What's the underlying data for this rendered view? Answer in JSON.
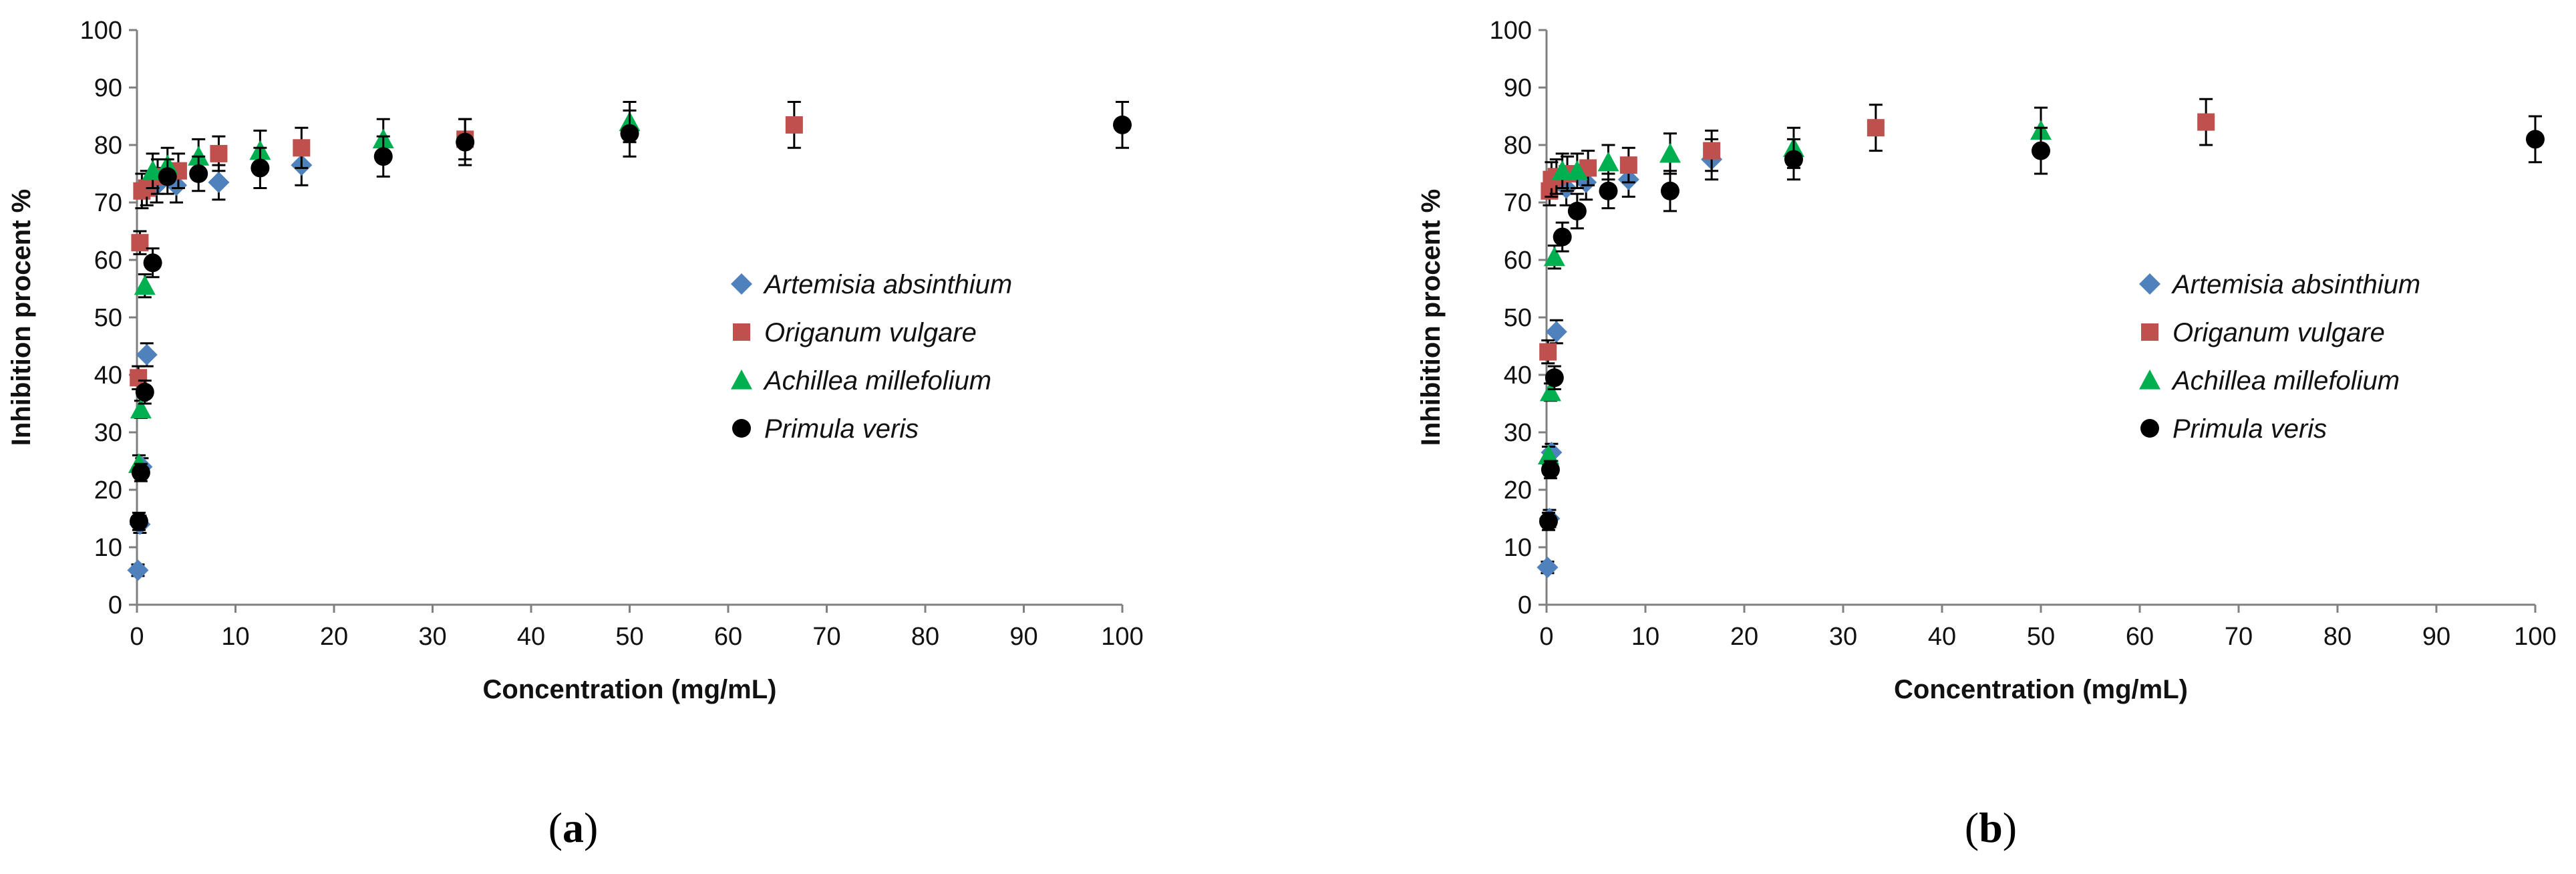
{
  "chart_data": [
    {
      "type": "scatter",
      "panel_label": "(a)",
      "panel_letter": "a",
      "xlabel": "Concentration (mg/mL)",
      "ylabel": "Inhibition procent %",
      "xlim": [
        0,
        100
      ],
      "ylim": [
        0,
        100
      ],
      "xticks": [
        0,
        10,
        20,
        30,
        40,
        50,
        60,
        70,
        80,
        90,
        100
      ],
      "yticks": [
        0,
        10,
        20,
        30,
        40,
        50,
        60,
        70,
        80,
        90,
        100
      ],
      "legend_position": "center-right",
      "series": [
        {
          "name": "Artemisia absinthium",
          "color": "#4f81bd",
          "marker": "diamond",
          "points": [
            {
              "x": 0.1,
              "y": 6,
              "err": 1
            },
            {
              "x": 0.3,
              "y": 14,
              "err": 1.5
            },
            {
              "x": 0.5,
              "y": 24,
              "err": 1.5
            },
            {
              "x": 1.0,
              "y": 43.5,
              "err": 2
            },
            {
              "x": 2.0,
              "y": 73,
              "err": 3
            },
            {
              "x": 4.0,
              "y": 73,
              "err": 3
            },
            {
              "x": 8.3,
              "y": 73.5,
              "err": 3
            },
            {
              "x": 16.7,
              "y": 76.5,
              "err": 3.5
            }
          ]
        },
        {
          "name": "Origanum vulgare",
          "color": "#c0504d",
          "marker": "square",
          "points": [
            {
              "x": 0.15,
              "y": 39.5,
              "err": 2
            },
            {
              "x": 0.3,
              "y": 63,
              "err": 2
            },
            {
              "x": 0.5,
              "y": 72,
              "err": 3
            },
            {
              "x": 1.0,
              "y": 72.5,
              "err": 3
            },
            {
              "x": 2.1,
              "y": 74.5,
              "err": 3
            },
            {
              "x": 4.2,
              "y": 75.5,
              "err": 3
            },
            {
              "x": 8.3,
              "y": 78.5,
              "err": 3
            },
            {
              "x": 16.7,
              "y": 79.5,
              "err": 3.5
            },
            {
              "x": 33.3,
              "y": 81,
              "err": 3.5
            },
            {
              "x": 66.7,
              "y": 83.5,
              "err": 4
            }
          ]
        },
        {
          "name": "Achillea millefolium",
          "color": "#00b050",
          "marker": "triangle",
          "points": [
            {
              "x": 0.2,
              "y": 24.5,
              "err": 1.5
            },
            {
              "x": 0.4,
              "y": 34,
              "err": 1.5
            },
            {
              "x": 0.8,
              "y": 55.5,
              "err": 2
            },
            {
              "x": 1.6,
              "y": 75.5,
              "err": 3
            },
            {
              "x": 3.1,
              "y": 76.5,
              "err": 3
            },
            {
              "x": 6.25,
              "y": 78,
              "err": 3
            },
            {
              "x": 12.5,
              "y": 79,
              "err": 3.5
            },
            {
              "x": 25,
              "y": 81,
              "err": 3.5
            },
            {
              "x": 50,
              "y": 84,
              "err": 3.5
            }
          ]
        },
        {
          "name": "Primula veris",
          "color": "#000000",
          "marker": "circle",
          "points": [
            {
              "x": 0.2,
              "y": 14.5,
              "err": 1.5
            },
            {
              "x": 0.4,
              "y": 23,
              "err": 1.5
            },
            {
              "x": 0.8,
              "y": 37,
              "err": 2
            },
            {
              "x": 1.6,
              "y": 59.5,
              "err": 2.5
            },
            {
              "x": 3.1,
              "y": 74.5,
              "err": 3
            },
            {
              "x": 6.25,
              "y": 75,
              "err": 3
            },
            {
              "x": 12.5,
              "y": 76,
              "err": 3.5
            },
            {
              "x": 25,
              "y": 78,
              "err": 3.5
            },
            {
              "x": 33.3,
              "y": 80.5,
              "err": 4
            },
            {
              "x": 50,
              "y": 82,
              "err": 4
            },
            {
              "x": 100,
              "y": 83.5,
              "err": 4
            }
          ]
        }
      ]
    },
    {
      "type": "scatter",
      "panel_label": "(b)",
      "panel_letter": "b",
      "xlabel": "Concentration (mg/mL)",
      "ylabel": "Inhibition procent %",
      "xlim": [
        0,
        100
      ],
      "ylim": [
        0,
        100
      ],
      "xticks": [
        0,
        10,
        20,
        30,
        40,
        50,
        60,
        70,
        80,
        90,
        100
      ],
      "yticks": [
        0,
        10,
        20,
        30,
        40,
        50,
        60,
        70,
        80,
        90,
        100
      ],
      "legend_position": "center-right",
      "series": [
        {
          "name": "Artemisia absinthium",
          "color": "#4f81bd",
          "marker": "diamond",
          "points": [
            {
              "x": 0.1,
              "y": 6.5,
              "err": 1
            },
            {
              "x": 0.3,
              "y": 15,
              "err": 1.5
            },
            {
              "x": 0.5,
              "y": 26.5,
              "err": 1.5
            },
            {
              "x": 1.0,
              "y": 47.5,
              "err": 2
            },
            {
              "x": 2.0,
              "y": 72.5,
              "err": 3
            },
            {
              "x": 4.0,
              "y": 73.5,
              "err": 3
            },
            {
              "x": 8.3,
              "y": 74,
              "err": 3
            },
            {
              "x": 16.7,
              "y": 77.5,
              "err": 3.5
            }
          ]
        },
        {
          "name": "Origanum vulgare",
          "color": "#c0504d",
          "marker": "square",
          "points": [
            {
              "x": 0.15,
              "y": 44,
              "err": 2
            },
            {
              "x": 0.3,
              "y": 72,
              "err": 2.5
            },
            {
              "x": 0.5,
              "y": 74,
              "err": 3
            },
            {
              "x": 1.0,
              "y": 74.5,
              "err": 3
            },
            {
              "x": 2.1,
              "y": 75,
              "err": 3
            },
            {
              "x": 4.2,
              "y": 76,
              "err": 3
            },
            {
              "x": 8.3,
              "y": 76.5,
              "err": 3
            },
            {
              "x": 16.7,
              "y": 79,
              "err": 3.5
            },
            {
              "x": 33.3,
              "y": 83,
              "err": 4
            },
            {
              "x": 66.7,
              "y": 84,
              "err": 4
            }
          ]
        },
        {
          "name": "Achillea millefolium",
          "color": "#00b050",
          "marker": "triangle",
          "points": [
            {
              "x": 0.2,
              "y": 26,
              "err": 1.5
            },
            {
              "x": 0.4,
              "y": 37,
              "err": 1.5
            },
            {
              "x": 0.8,
              "y": 60.5,
              "err": 2
            },
            {
              "x": 1.6,
              "y": 75.5,
              "err": 3
            },
            {
              "x": 3.1,
              "y": 75.5,
              "err": 3
            },
            {
              "x": 6.25,
              "y": 77,
              "err": 3
            },
            {
              "x": 12.5,
              "y": 78.5,
              "err": 3.5
            },
            {
              "x": 25,
              "y": 79.5,
              "err": 3.5
            },
            {
              "x": 50,
              "y": 82.5,
              "err": 4
            }
          ]
        },
        {
          "name": "Primula veris",
          "color": "#000000",
          "marker": "circle",
          "points": [
            {
              "x": 0.2,
              "y": 14.5,
              "err": 1.5
            },
            {
              "x": 0.4,
              "y": 23.5,
              "err": 1.5
            },
            {
              "x": 0.8,
              "y": 39.5,
              "err": 2
            },
            {
              "x": 1.6,
              "y": 64,
              "err": 2.5
            },
            {
              "x": 3.1,
              "y": 68.5,
              "err": 3
            },
            {
              "x": 6.25,
              "y": 72,
              "err": 3
            },
            {
              "x": 12.5,
              "y": 72,
              "err": 3.5
            },
            {
              "x": 25,
              "y": 77.5,
              "err": 3.5
            },
            {
              "x": 50,
              "y": 79,
              "err": 4
            },
            {
              "x": 100,
              "y": 81,
              "err": 4
            }
          ]
        }
      ]
    }
  ]
}
